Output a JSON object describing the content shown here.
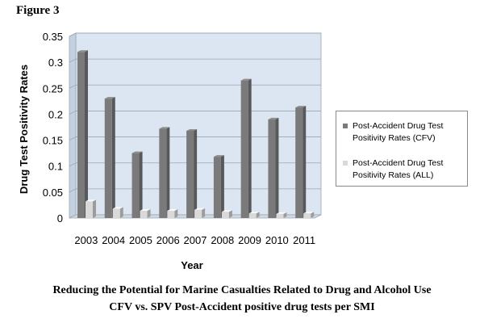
{
  "figure_label": "Figure 3",
  "caption": {
    "line1": "Reducing the Potential for Marine Casualties Related to Drug and Alcohol Use",
    "line2": "CFV vs. SPV Post-Accident positive drug tests per SMI"
  },
  "chart_data": {
    "type": "bar",
    "title": "",
    "xlabel": "Year",
    "ylabel": "Drug Test Positivity Rates",
    "categories": [
      "2003",
      "2004",
      "2005",
      "2006",
      "2007",
      "2008",
      "2009",
      "2010",
      "2011"
    ],
    "ylim": [
      0,
      0.35
    ],
    "yticks": [
      "0",
      "0.05",
      "0.1",
      "0.15",
      "0.2",
      "0.25",
      "0.3",
      "0.35"
    ],
    "grid": true,
    "legend_position": "right",
    "series": [
      {
        "name": "Post-Accident Drug Test Positivity Rates (CFV)",
        "color": "#7a7a7a",
        "values": [
          0.32,
          0.23,
          0.125,
          0.172,
          0.168,
          0.118,
          0.265,
          0.19,
          0.213
        ]
      },
      {
        "name": "Post-Accident Drug Test Positivity Rates (ALL)",
        "color": "#d9d9d9",
        "values": [
          0.032,
          0.018,
          0.014,
          0.014,
          0.016,
          0.012,
          0.009,
          0.008,
          0.009
        ]
      }
    ]
  }
}
